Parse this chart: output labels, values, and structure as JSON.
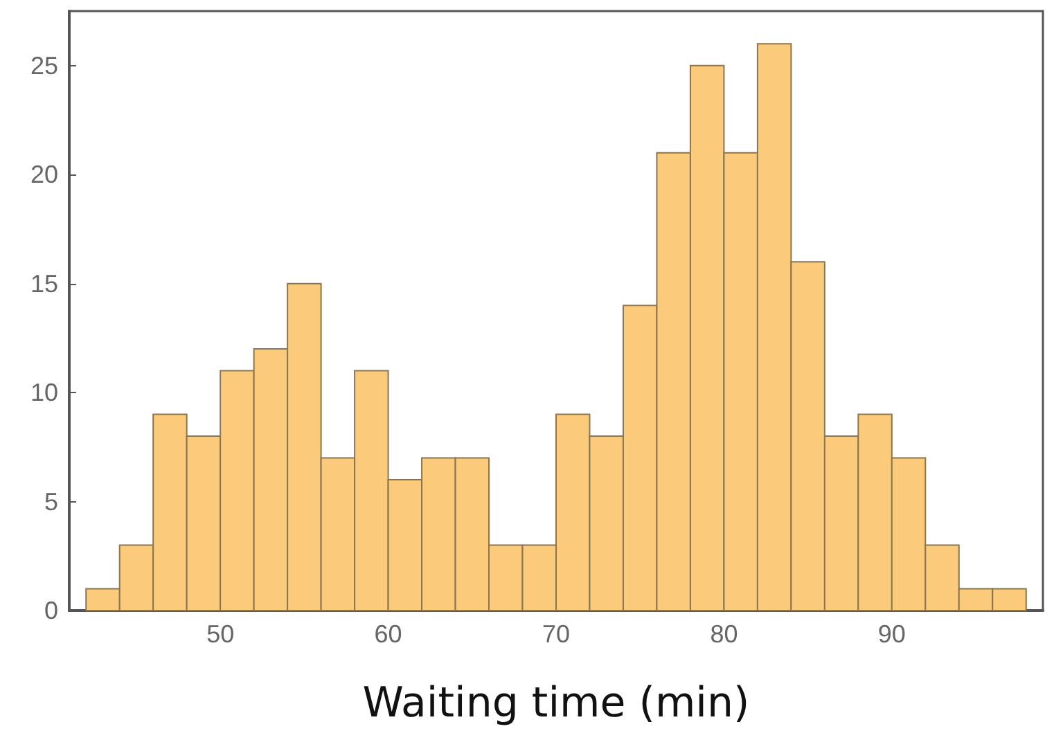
{
  "chart_data": {
    "type": "histogram",
    "xlabel": "Waiting time (min)",
    "bins": [
      42,
      44,
      46,
      48,
      50,
      52,
      54,
      56,
      58,
      60,
      62,
      64,
      66,
      68,
      70,
      72,
      74,
      76,
      78,
      80,
      82,
      84,
      86,
      88,
      90,
      92,
      94,
      96,
      98
    ],
    "values": [
      1,
      3,
      9,
      8,
      11,
      12,
      15,
      7,
      11,
      6,
      7,
      7,
      3,
      3,
      9,
      8,
      14,
      21,
      25,
      21,
      26,
      16,
      8,
      9,
      7,
      3,
      1,
      1
    ],
    "color": "#fbcb7b",
    "xlim": [
      41,
      99
    ],
    "xticks": [
      50,
      60,
      70,
      80,
      90
    ],
    "ylim": [
      0,
      27.5
    ],
    "yticks": [
      0,
      5,
      10,
      15,
      20,
      25
    ],
    "grid": false
  }
}
